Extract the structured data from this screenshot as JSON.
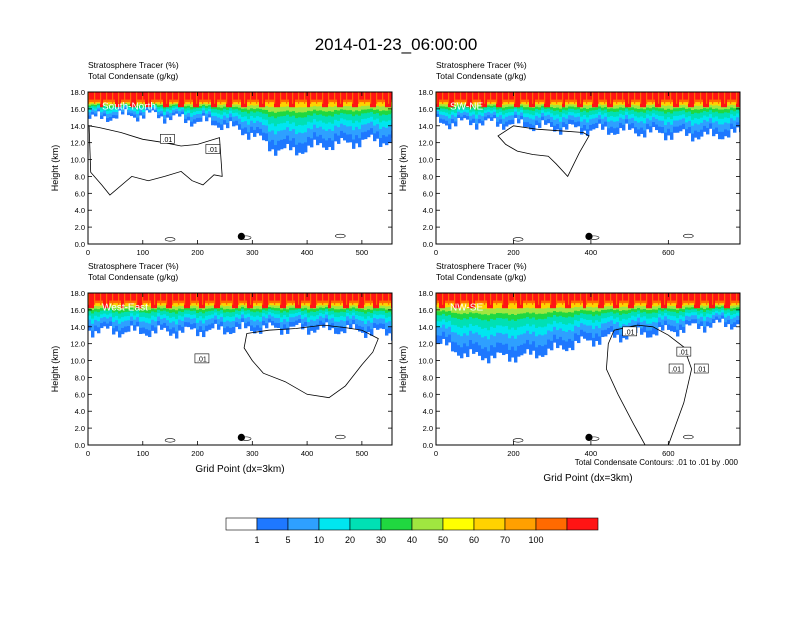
{
  "title": "2014-01-23_06:00:00",
  "colors": {
    "white": "#ffffff",
    "blue": "#1e78ff",
    "skyblue": "#2ea0ff",
    "cyan": "#00e6f0",
    "aqua": "#00e0b4",
    "green": "#20d840",
    "yellowgreen": "#a0e640",
    "yellow": "#ffff00",
    "gold": "#ffd200",
    "orange": "#ffa000",
    "darkorange": "#ff6a00",
    "red": "#ff1414"
  },
  "chart_data": [
    {
      "type": "heatmap",
      "label": "South-North",
      "title_line1": "Stratosphere Tracer   (%)",
      "title_line2": "Total Condensate   (g/kg)",
      "ylabel": "Height (km)",
      "xlabel": "",
      "xlim": [
        0,
        555
      ],
      "ylim": [
        0,
        18
      ],
      "xticks": [
        0,
        100,
        200,
        300,
        400,
        500
      ],
      "xtick_labels": [
        "0",
        "100",
        "200",
        "300",
        "400",
        "500"
      ],
      "yticks": [
        0,
        2,
        4,
        6,
        8,
        10,
        12,
        14,
        16,
        18
      ],
      "ytick_labels": [
        "0.0",
        "2.0",
        "4.0",
        "6.0",
        "8.0",
        "10.0",
        "12.0",
        "14.0",
        "16.0",
        "18.0"
      ],
      "marker_x": 280,
      "contour_labels": [
        ".01",
        ".01"
      ],
      "contour_label_pos": [
        [
          145,
          12.4
        ],
        [
          228,
          11.2
        ]
      ],
      "tracer_bottom_km": [
        [
          0,
          14.8
        ],
        [
          60,
          15.2
        ],
        [
          120,
          15.3
        ],
        [
          180,
          14.7
        ],
        [
          240,
          14.2
        ],
        [
          300,
          13.0
        ],
        [
          340,
          11.2
        ],
        [
          380,
          11.0
        ],
        [
          420,
          11.6
        ],
        [
          470,
          11.9
        ],
        [
          520,
          12.3
        ],
        [
          555,
          12.1
        ]
      ],
      "condensate_outline_km": [
        [
          2,
          14.0
        ],
        [
          20,
          13.8
        ],
        [
          60,
          13.2
        ],
        [
          100,
          12.4
        ],
        [
          140,
          12.0
        ],
        [
          170,
          11.6
        ],
        [
          200,
          11.8
        ],
        [
          240,
          12.6
        ],
        [
          245,
          8.0
        ],
        [
          230,
          8.2
        ],
        [
          210,
          7.0
        ],
        [
          190,
          7.5
        ],
        [
          170,
          8.6
        ],
        [
          140,
          8.0
        ],
        [
          110,
          7.5
        ],
        [
          80,
          8.0
        ],
        [
          40,
          5.8
        ],
        [
          25,
          7.0
        ],
        [
          5,
          8.5
        ]
      ]
    },
    {
      "type": "heatmap",
      "label": "SW-NE",
      "title_line1": "Stratosphere Tracer   (%)",
      "title_line2": "Total Condensate   (g/kg)",
      "ylabel": "Height (km)",
      "xlabel": "",
      "xlim": [
        0,
        785
      ],
      "ylim": [
        0,
        18
      ],
      "xticks": [
        0,
        200,
        400,
        600
      ],
      "xtick_labels": [
        "0",
        "200",
        "400",
        "600"
      ],
      "yticks": [
        0,
        2,
        4,
        6,
        8,
        10,
        12,
        14,
        16,
        18
      ],
      "ytick_labels": [
        "0.0",
        "2.0",
        "4.0",
        "6.0",
        "8.0",
        "10.0",
        "12.0",
        "14.0",
        "16.0",
        "18.0"
      ],
      "marker_x": 395,
      "contour_labels": [],
      "contour_label_pos": [],
      "tracer_bottom_km": [
        [
          0,
          14.3
        ],
        [
          100,
          14.4
        ],
        [
          200,
          14.2
        ],
        [
          300,
          13.8
        ],
        [
          400,
          13.5
        ],
        [
          500,
          13.4
        ],
        [
          600,
          13.0
        ],
        [
          700,
          12.8
        ],
        [
          785,
          13.1
        ]
      ],
      "condensate_outline_km": [
        [
          200,
          14.0
        ],
        [
          260,
          13.6
        ],
        [
          320,
          13.4
        ],
        [
          380,
          13.2
        ],
        [
          395,
          12.8
        ],
        [
          370,
          10.8
        ],
        [
          340,
          8.0
        ],
        [
          310,
          9.5
        ],
        [
          290,
          10.4
        ],
        [
          250,
          10.6
        ],
        [
          210,
          11.0
        ],
        [
          180,
          11.8
        ],
        [
          160,
          12.8
        ]
      ]
    },
    {
      "type": "heatmap",
      "label": "West-East",
      "title_line1": "Stratosphere Tracer   (%)",
      "title_line2": "Total Condensate   (g/kg)",
      "ylabel": "Height (km)",
      "xlabel": "Grid Point (dx=3km)",
      "xlim": [
        0,
        555
      ],
      "ylim": [
        0,
        18
      ],
      "xticks": [
        0,
        100,
        200,
        300,
        400,
        500
      ],
      "xtick_labels": [
        "0",
        "100",
        "200",
        "300",
        "400",
        "500"
      ],
      "yticks": [
        0,
        2,
        4,
        6,
        8,
        10,
        12,
        14,
        16,
        18
      ],
      "ytick_labels": [
        "0.0",
        "2.0",
        "4.0",
        "6.0",
        "8.0",
        "10.0",
        "12.0",
        "14.0",
        "16.0",
        "18.0"
      ],
      "marker_x": 280,
      "contour_labels": [
        ".01"
      ],
      "contour_label_pos": [
        [
          208,
          10.2
        ]
      ],
      "tracer_bottom_km": [
        [
          0,
          13.6
        ],
        [
          80,
          13.4
        ],
        [
          160,
          13.4
        ],
        [
          240,
          13.6
        ],
        [
          320,
          13.8
        ],
        [
          400,
          13.8
        ],
        [
          480,
          13.6
        ],
        [
          555,
          13.2
        ]
      ],
      "condensate_outline_km": [
        [
          290,
          13.2
        ],
        [
          330,
          13.6
        ],
        [
          380,
          13.8
        ],
        [
          430,
          14.2
        ],
        [
          470,
          13.9
        ],
        [
          500,
          13.6
        ],
        [
          530,
          12.6
        ],
        [
          520,
          11.0
        ],
        [
          500,
          9.5
        ],
        [
          470,
          7.0
        ],
        [
          440,
          5.6
        ],
        [
          400,
          6.0
        ],
        [
          360,
          7.5
        ],
        [
          320,
          8.5
        ],
        [
          300,
          10.0
        ],
        [
          285,
          11.5
        ]
      ]
    },
    {
      "type": "heatmap",
      "label": "NW-SE",
      "title_line1": "Stratosphere Tracer   (%)",
      "title_line2": "Total Condensate   (g/kg)",
      "ylabel": "Height (km)",
      "xlabel": "Grid Point (dx=3km)",
      "xlim": [
        0,
        785
      ],
      "ylim": [
        0,
        18
      ],
      "xticks": [
        0,
        200,
        400,
        600
      ],
      "xtick_labels": [
        "0",
        "200",
        "400",
        "600"
      ],
      "yticks": [
        0,
        2,
        4,
        6,
        8,
        10,
        12,
        14,
        16,
        18
      ],
      "ytick_labels": [
        "0.0",
        "2.0",
        "4.0",
        "6.0",
        "8.0",
        "10.0",
        "12.0",
        "14.0",
        "16.0",
        "18.0"
      ],
      "marker_x": 395,
      "contour_labels": [
        ".01",
        ".01",
        ".01",
        ".01"
      ],
      "contour_label_pos": [
        [
          500,
          13.4
        ],
        [
          640,
          11.0
        ],
        [
          620,
          9.0
        ],
        [
          685,
          9.0
        ]
      ],
      "tracer_bottom_km": [
        [
          0,
          12.2
        ],
        [
          80,
          10.6
        ],
        [
          160,
          10.4
        ],
        [
          240,
          10.6
        ],
        [
          300,
          11.2
        ],
        [
          380,
          12.2
        ],
        [
          460,
          12.8
        ],
        [
          540,
          13.2
        ],
        [
          620,
          13.6
        ],
        [
          700,
          14.2
        ],
        [
          785,
          14.4
        ]
      ],
      "condensate_outline_km": [
        [
          460,
          13.6
        ],
        [
          520,
          14.2
        ],
        [
          560,
          14.0
        ],
        [
          600,
          13.0
        ],
        [
          640,
          11.6
        ],
        [
          660,
          9.0
        ],
        [
          640,
          5.0
        ],
        [
          600,
          0.0
        ],
        [
          540,
          0.0
        ],
        [
          510,
          2.5
        ],
        [
          470,
          6.0
        ],
        [
          440,
          9.0
        ],
        [
          445,
          12.0
        ]
      ]
    }
  ],
  "footnote": "Total Condensate Contours: .01 to .01 by .000",
  "colorbar": {
    "labels": [
      "1",
      "5",
      "10",
      "20",
      "30",
      "40",
      "50",
      "60",
      "70",
      "100"
    ],
    "colors": [
      "#ffffff",
      "#1e78ff",
      "#2ea0ff",
      "#00e6f0",
      "#00e0b4",
      "#20d840",
      "#a0e640",
      "#ffff00",
      "#ffd200",
      "#ffa000",
      "#ff6a00",
      "#ff1414"
    ]
  }
}
